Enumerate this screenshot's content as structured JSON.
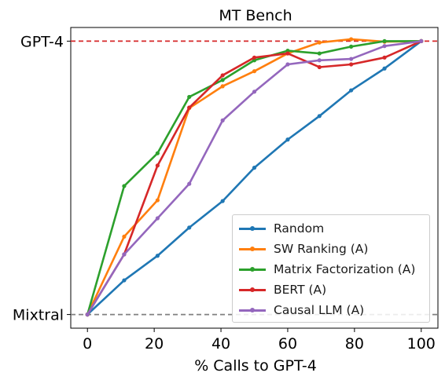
{
  "chart_data": {
    "type": "line",
    "title": "MT Bench",
    "xlabel": "% Calls to GPT-4",
    "ylabel": "",
    "xlim": [
      -5,
      105
    ],
    "ylim": [
      -0.05,
      1.05
    ],
    "x_ticks": [
      0,
      20,
      40,
      60,
      80,
      100
    ],
    "y_tick_labels": [
      {
        "value": 0,
        "label": "Mixtral"
      },
      {
        "value": 1,
        "label": "GPT-4"
      }
    ],
    "reference_lines": [
      {
        "y": 1,
        "style": "dashed",
        "color": "#d62728"
      },
      {
        "y": 0,
        "style": "dashed",
        "color": "#808080"
      }
    ],
    "legend_position": "lower right",
    "grid": false,
    "series": [
      {
        "name": "Random",
        "color": "#1f77b4",
        "x": [
          0,
          11,
          21,
          30.5,
          40.5,
          50,
          60,
          69.5,
          79,
          89,
          100
        ],
        "y": [
          0,
          0.125,
          0.215,
          0.318,
          0.415,
          0.537,
          0.64,
          0.726,
          0.82,
          0.9,
          1.0
        ]
      },
      {
        "name": "SW Ranking (A)",
        "color": "#ff7f0e",
        "x": [
          0,
          11,
          21,
          30.5,
          40.5,
          50,
          60,
          69.5,
          79,
          89,
          100
        ],
        "y": [
          0,
          0.285,
          0.418,
          0.755,
          0.835,
          0.89,
          0.955,
          0.995,
          1.007,
          0.998,
          1.0
        ]
      },
      {
        "name": "Matrix Factorization (A)",
        "color": "#2ca02c",
        "x": [
          0,
          11,
          21,
          30.5,
          40.5,
          50,
          60,
          69.5,
          79,
          89,
          100
        ],
        "y": [
          0,
          0.47,
          0.59,
          0.796,
          0.858,
          0.93,
          0.965,
          0.955,
          0.98,
          1.0,
          1.0
        ]
      },
      {
        "name": "BERT (A)",
        "color": "#d62728",
        "x": [
          0,
          11,
          21,
          30.5,
          40.5,
          50,
          60,
          69.5,
          79,
          89,
          100
        ],
        "y": [
          0,
          0.22,
          0.545,
          0.757,
          0.875,
          0.94,
          0.955,
          0.905,
          0.915,
          0.94,
          1.0
        ]
      },
      {
        "name": "Causal LLM (A)",
        "color": "#9467bd",
        "x": [
          0,
          11,
          21,
          30.5,
          40.5,
          50,
          60,
          69.5,
          79,
          89,
          100
        ],
        "y": [
          0,
          0.22,
          0.352,
          0.478,
          0.71,
          0.815,
          0.915,
          0.93,
          0.935,
          0.982,
          1.0
        ]
      }
    ]
  }
}
